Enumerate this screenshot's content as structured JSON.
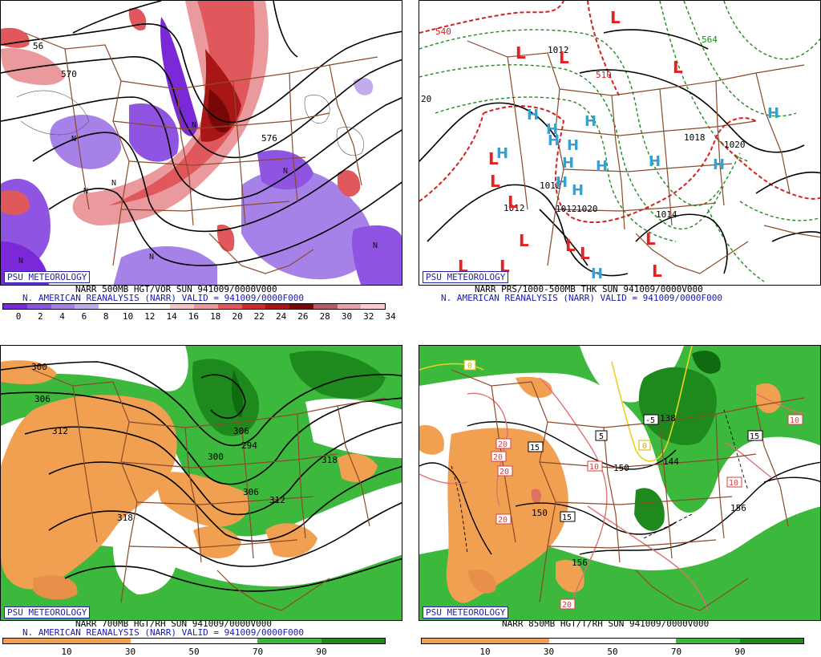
{
  "panels": [
    {
      "id": "vor",
      "badge": "PSU METEOROLOGY",
      "caption1": "NARR 500MB HGT/VOR SUN 941009/0000V000",
      "caption2": "N. AMERICAN REANALYSIS (NARR) VALID = 941009/0000F000",
      "colorbar": {
        "colors": [
          "#7a28d8",
          "#8f55e2",
          "#a581e8",
          "#c1acee",
          "#ffffff",
          "#ffffff",
          "#ffffff",
          "#f4c6c8",
          "#ea9a9c",
          "#e0585c",
          "#cc2a2c",
          "#a81616",
          "#780808",
          "#b85a6a",
          "#e8a0aa",
          "#ffccd4"
        ],
        "ticks": [
          "0",
          "2",
          "4",
          "6",
          "8",
          "10",
          "12",
          "14",
          "16",
          "18",
          "20",
          "22",
          "24",
          "26",
          "28",
          "30",
          "32",
          "34"
        ]
      },
      "map_labels": [
        "56",
        "570",
        "576",
        "N",
        "N",
        "N",
        "N",
        "N",
        "N",
        "N",
        "N"
      ]
    },
    {
      "id": "prs",
      "badge": "PSU METEOROLOGY",
      "caption1": "NARR PRS/1000-500MB THK SUN 941009/0000V000",
      "caption2": "N. AMERICAN REANALYSIS (NARR) VALID = 941009/0000F000",
      "map_labels": [
        "540",
        "1012",
        "20",
        "510",
        "1018",
        "1020",
        "1012",
        "1012",
        "1014",
        "564",
        "1012",
        "1020"
      ],
      "highs": [
        "H",
        "H",
        "H",
        "H",
        "H",
        "H",
        "H",
        "H",
        "H",
        "H",
        "H",
        "H",
        "H",
        "H"
      ],
      "lows": [
        "L",
        "L",
        "L",
        "L",
        "L",
        "L",
        "L",
        "L",
        "L",
        "L",
        "L",
        "L",
        "L",
        "L"
      ]
    },
    {
      "id": "rh700",
      "badge": "PSU METEOROLOGY",
      "caption1": "NARR 700MB HGT/RH SUN 941009/0000V000",
      "caption2": "N. AMERICAN REANALYSIS (NARR) VALID = 941009/0000F000",
      "colorbar": {
        "colors": [
          "#f0a050",
          "#f0a050",
          "#f0a050",
          "#f0a050",
          "#ffffff",
          "#ffffff",
          "#ffffff",
          "#ffffff",
          "#3cb83c",
          "#3cb83c",
          "#1e8a1e",
          "#1e8a1e"
        ],
        "ticks": [
          "10",
          "30",
          "50",
          "70",
          "90"
        ]
      },
      "map_labels": [
        "300",
        "306",
        "312",
        "318",
        "300",
        "312",
        "306",
        "318",
        "306",
        "294"
      ]
    },
    {
      "id": "t850",
      "badge": "PSU METEOROLOGY",
      "caption1": "NARR 850MB HGT/T/RH SUN 941009/0000V000",
      "caption2": "",
      "colorbar": {
        "colors": [
          "#f0a050",
          "#f0a050",
          "#f0a050",
          "#f0a050",
          "#ffffff",
          "#ffffff",
          "#ffffff",
          "#ffffff",
          "#3cb83c",
          "#3cb83c",
          "#1e8a1e",
          "#1e8a1e"
        ],
        "ticks": [
          "10",
          "30",
          "50",
          "70",
          "90"
        ]
      },
      "map_labels": [
        "0",
        "0",
        "-5",
        "5",
        "15",
        "15",
        "20",
        "20",
        "20",
        "20",
        "10",
        "10",
        "10",
        "15",
        "150",
        "150",
        "156",
        "156",
        "144",
        "138",
        "20"
      ]
    }
  ],
  "colors": {
    "boundary": "#8b4a2b",
    "low_marker": "#e52020",
    "high_marker": "#2aa4e0",
    "badge_text": "#2222aa"
  }
}
